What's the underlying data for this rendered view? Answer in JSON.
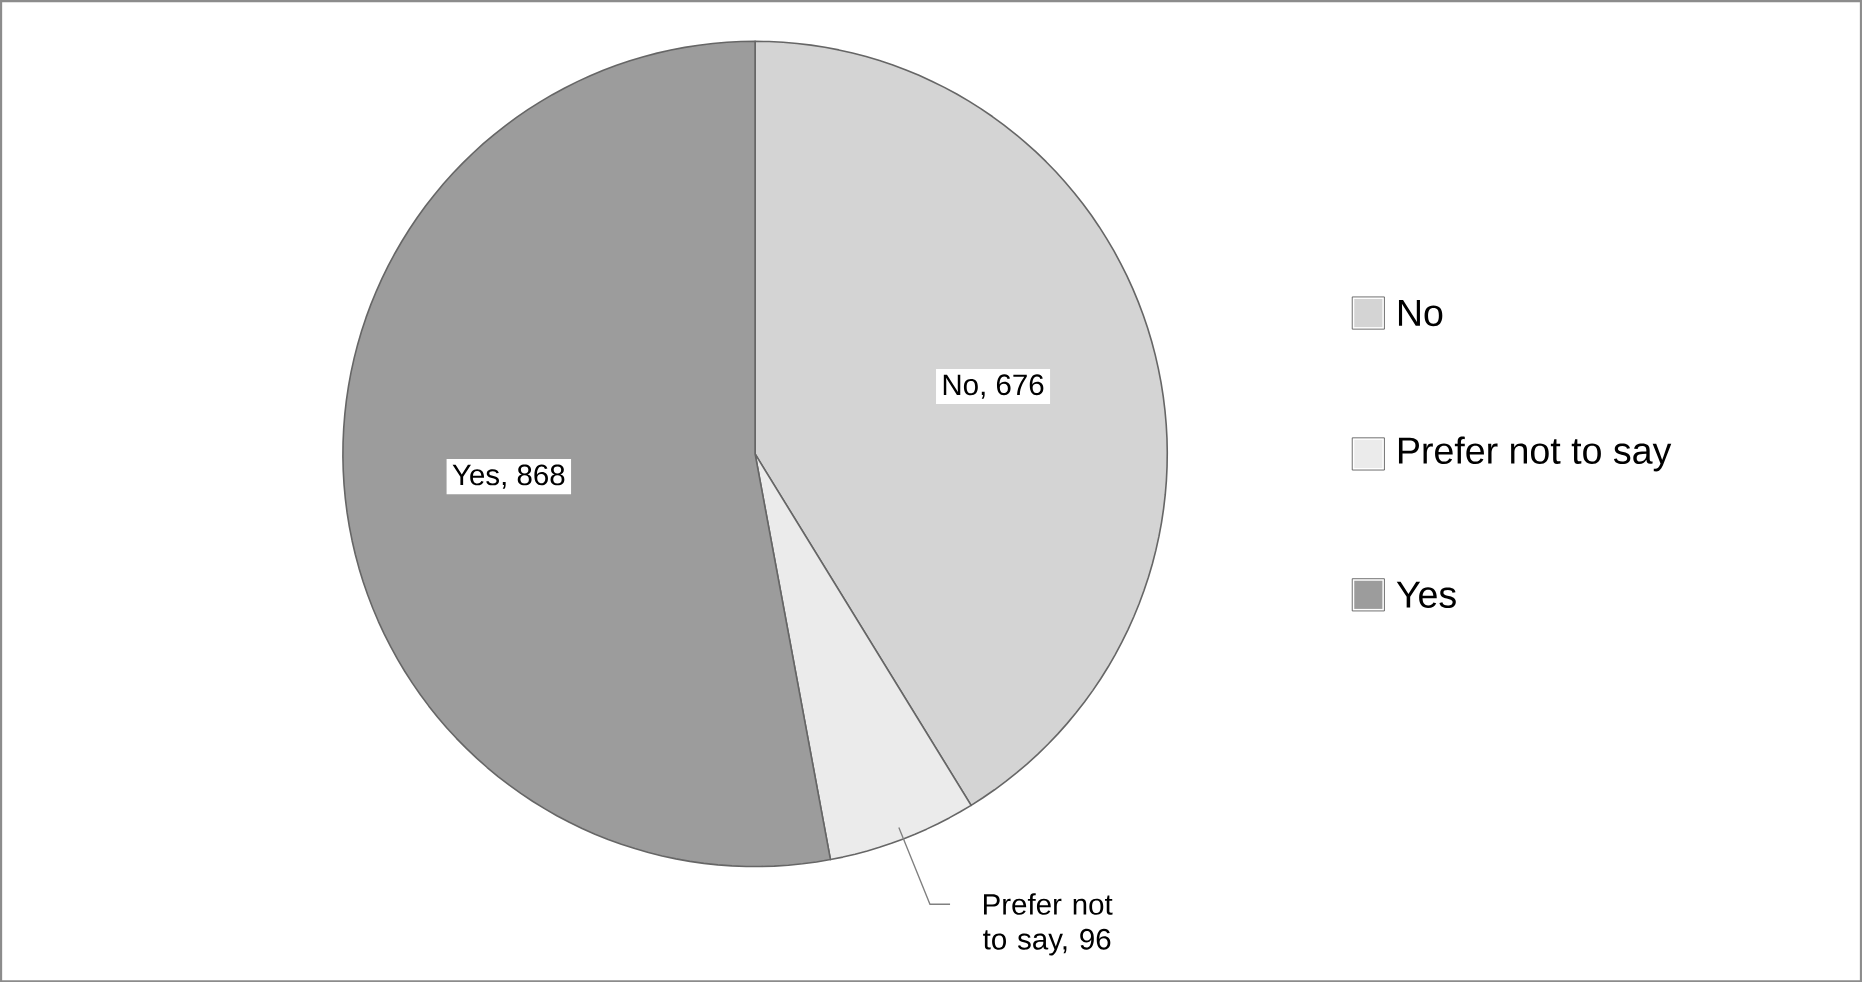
{
  "chart_data": {
    "type": "pie",
    "categories": [
      "No",
      "Prefer not to say",
      "Yes"
    ],
    "values": [
      676,
      96,
      868
    ],
    "colors": [
      "#d4d4d4",
      "#ebebeb",
      "#9c9c9c"
    ],
    "value_labels": [
      "No, 676",
      "Prefer not to say, 96",
      "Yes, 868"
    ],
    "legend": "right"
  }
}
